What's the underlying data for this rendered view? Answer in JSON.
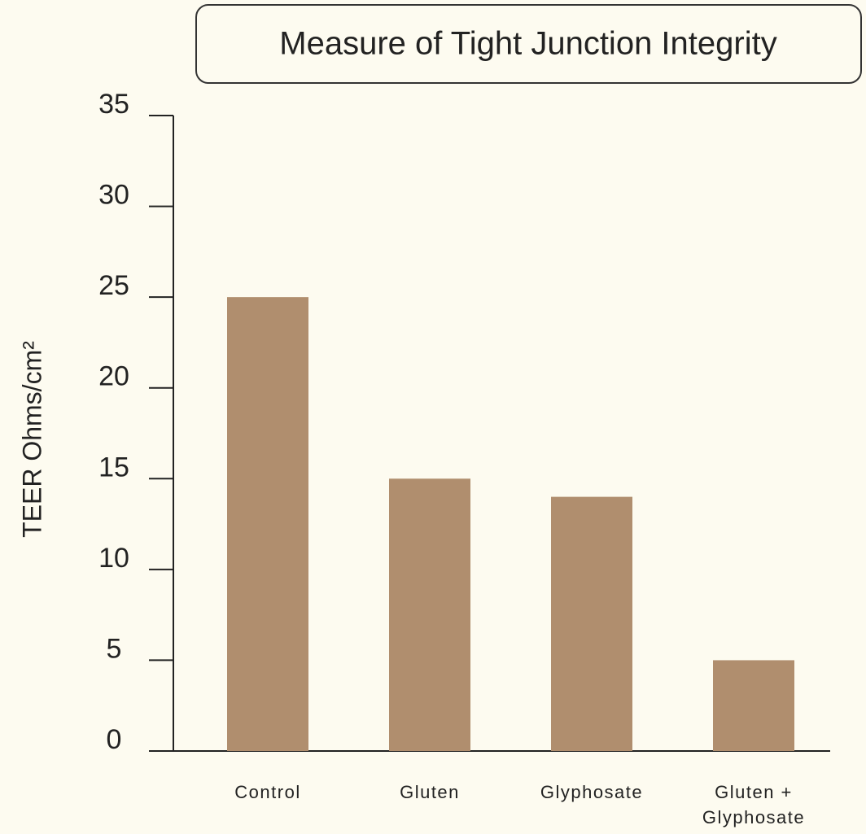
{
  "chart_data": {
    "type": "bar",
    "title": "Measure of Tight Junction Integrity",
    "y_label": "TEER Ohms/cm²",
    "categories": [
      "Control",
      "Gluten",
      "Glyphosate",
      "Gluten + Glyphosate"
    ],
    "values": [
      25,
      15,
      14,
      5
    ],
    "color": "#b08e6e",
    "ylim": [
      0,
      35
    ],
    "yticks": [
      0,
      5,
      10,
      15,
      20,
      25,
      30,
      35
    ],
    "grid": false
  }
}
